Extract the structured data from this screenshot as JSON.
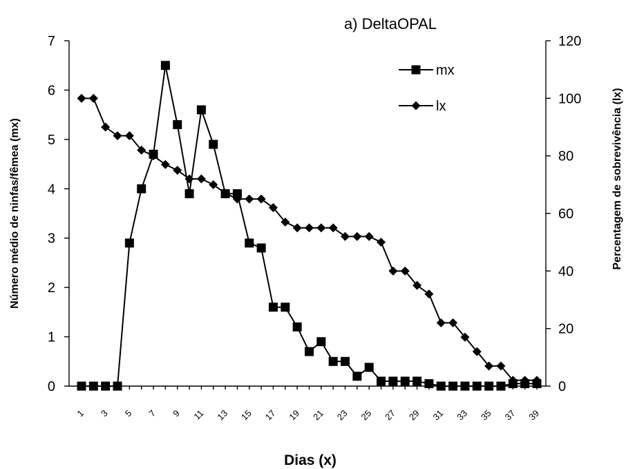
{
  "chart_data": {
    "type": "line",
    "title": "a) DeltaOPAL",
    "xlabel": "Dias (x)",
    "ylabel_left": "Número médio de ninfas/fêmea (mx)",
    "ylabel_right": "Percentagem de sobrevivência (lx)",
    "x": [
      1,
      2,
      3,
      4,
      5,
      6,
      7,
      8,
      9,
      10,
      11,
      12,
      13,
      14,
      15,
      16,
      17,
      18,
      19,
      20,
      21,
      22,
      23,
      24,
      25,
      26,
      27,
      28,
      29,
      30,
      31,
      32,
      33,
      34,
      35,
      36,
      37,
      38,
      39
    ],
    "x_tick_labels": [
      "1",
      "3",
      "5",
      "7",
      "9",
      "11",
      "13",
      "15",
      "17",
      "19",
      "21",
      "23",
      "25",
      "27",
      "29",
      "31",
      "33",
      "35",
      "37",
      "39"
    ],
    "ylim_left": [
      0,
      7
    ],
    "yticks_left": [
      "0",
      "1",
      "2",
      "3",
      "4",
      "5",
      "6",
      "7"
    ],
    "ylim_right": [
      0,
      120
    ],
    "yticks_right": [
      "0",
      "20",
      "40",
      "60",
      "80",
      "100",
      "120"
    ],
    "series": [
      {
        "name": "mx",
        "axis": "left",
        "marker": "square",
        "values": [
          0,
          0,
          0,
          0,
          2.9,
          4.0,
          4.7,
          6.5,
          5.3,
          3.9,
          5.6,
          4.9,
          3.9,
          3.9,
          2.9,
          2.8,
          1.6,
          1.6,
          1.2,
          0.7,
          0.9,
          0.5,
          0.5,
          0.2,
          0.38,
          0.1,
          0.1,
          0.1,
          0.1,
          0.05,
          0,
          0,
          0,
          0,
          0,
          0,
          0.05,
          0.05,
          0.05
        ]
      },
      {
        "name": "lx",
        "axis": "right",
        "marker": "diamond",
        "values": [
          100,
          100,
          90,
          87,
          87,
          82,
          80,
          77,
          75,
          72,
          72,
          70,
          67,
          65,
          65,
          65,
          62,
          57,
          55,
          55,
          55,
          55,
          52,
          52,
          52,
          50,
          40,
          40,
          35,
          32,
          22,
          22,
          17,
          12,
          7,
          7,
          2,
          2,
          2
        ]
      }
    ],
    "legend": {
      "position": "top-right",
      "entries": [
        "mx",
        "lx"
      ]
    },
    "grid": false
  }
}
